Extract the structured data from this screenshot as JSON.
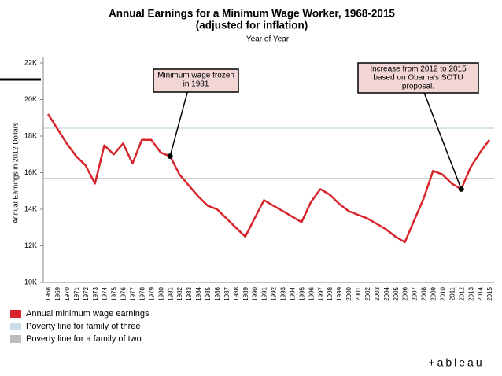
{
  "chart_data": {
    "type": "line",
    "title": "Annual Earnings for a Minimum Wage Worker, 1968-2015",
    "subtitle": "(adjusted for inflation)",
    "x_label": "Year of Year",
    "y_label": "Annual Earnings in 2012 Dollars",
    "x": [
      1968,
      1969,
      1970,
      1971,
      1972,
      1973,
      1974,
      1975,
      1976,
      1977,
      1978,
      1979,
      1980,
      1981,
      1982,
      1983,
      1984,
      1985,
      1986,
      1987,
      1988,
      1989,
      1990,
      1991,
      1992,
      1993,
      1994,
      1995,
      1996,
      1997,
      1998,
      1999,
      2000,
      2001,
      2002,
      2003,
      2004,
      2005,
      2006,
      2007,
      2008,
      2009,
      2010,
      2011,
      2012,
      2013,
      2014,
      2015
    ],
    "series": [
      {
        "name": "Annual minimum wage earnings",
        "color": "#d7262b",
        "values": [
          19200,
          18400,
          17600,
          16900,
          16400,
          15400,
          17500,
          17000,
          17600,
          16500,
          17800,
          17800,
          17100,
          16900,
          15900,
          15300,
          14700,
          14200,
          14000,
          13500,
          13000,
          12500,
          13500,
          14500,
          14200,
          13900,
          13600,
          13300,
          14400,
          15100,
          14800,
          14300,
          13900,
          13700,
          13500,
          13200,
          12900,
          12500,
          12200,
          13400,
          14600,
          16100,
          15900,
          15400,
          15100,
          16300,
          17100,
          17800
        ]
      }
    ],
    "reference_lines": [
      {
        "name": "Poverty line for family of three",
        "color": "#c9dce8",
        "value": 18430
      },
      {
        "name": "Poverty line for a family of two",
        "color": "#bdbdbd",
        "value": 15680
      }
    ],
    "annotations": [
      {
        "lines": [
          "Minimum wage frozen",
          "in 1981"
        ],
        "x": 1981
      },
      {
        "lines": [
          "Increase from 2012 to 2015",
          "based on Obama's SOTU",
          "proposal."
        ],
        "x": 2012
      }
    ],
    "ylim": [
      10000,
      22000
    ],
    "yticks": [
      {
        "value": 10000,
        "label": "10K"
      },
      {
        "value": 12000,
        "label": "12K"
      },
      {
        "value": 14000,
        "label": "14K"
      },
      {
        "value": 16000,
        "label": "16K"
      },
      {
        "value": 18000,
        "label": "18K"
      },
      {
        "value": 20000,
        "label": "20K"
      },
      {
        "value": 22000,
        "label": "22K"
      }
    ],
    "brand": "+ableau"
  }
}
